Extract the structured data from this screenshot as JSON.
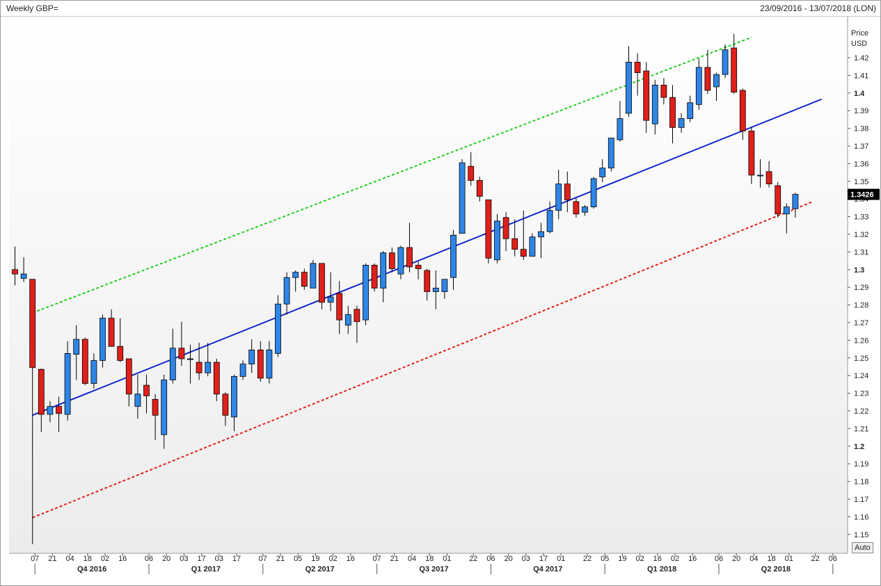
{
  "header": {
    "title": "Weekly GBP=",
    "date_range": "23/09/2016 - 13/07/2018 (LON)"
  },
  "axis": {
    "price_label": "Price",
    "currency_label": "USD",
    "auto_button": "Auto"
  },
  "colors": {
    "up": "#2e86e6",
    "down": "#e0201a",
    "trend": "#1428c8",
    "upper_channel": "#22cc22",
    "lower_channel": "#e0201a",
    "last_price_bg": "#000000"
  },
  "chart_data": {
    "type": "candlestick",
    "title": "Weekly GBP=",
    "ylabel": "Price USD",
    "ylim": [
      1.14,
      1.43
    ],
    "last_price": "1.3426",
    "yticks": [
      {
        "v": 1.15,
        "label": "1.15",
        "bold": false
      },
      {
        "v": 1.16,
        "label": "1.16",
        "bold": false
      },
      {
        "v": 1.17,
        "label": "1.17",
        "bold": false
      },
      {
        "v": 1.18,
        "label": "1.18",
        "bold": false
      },
      {
        "v": 1.19,
        "label": "1.19",
        "bold": false
      },
      {
        "v": 1.2,
        "label": "1.2",
        "bold": true
      },
      {
        "v": 1.21,
        "label": "1.21",
        "bold": false
      },
      {
        "v": 1.22,
        "label": "1.22",
        "bold": false
      },
      {
        "v": 1.23,
        "label": "1.23",
        "bold": false
      },
      {
        "v": 1.24,
        "label": "1.24",
        "bold": false
      },
      {
        "v": 1.25,
        "label": "1.25",
        "bold": false
      },
      {
        "v": 1.26,
        "label": "1.26",
        "bold": false
      },
      {
        "v": 1.27,
        "label": "1.27",
        "bold": false
      },
      {
        "v": 1.28,
        "label": "1.28",
        "bold": false
      },
      {
        "v": 1.29,
        "label": "1.29",
        "bold": false
      },
      {
        "v": 1.3,
        "label": "1.3",
        "bold": true
      },
      {
        "v": 1.31,
        "label": "1.31",
        "bold": false
      },
      {
        "v": 1.32,
        "label": "1.32",
        "bold": false
      },
      {
        "v": 1.33,
        "label": "1.33",
        "bold": false
      },
      {
        "v": 1.34,
        "label": "1.34",
        "bold": false
      },
      {
        "v": 1.35,
        "label": "1.35",
        "bold": false
      },
      {
        "v": 1.36,
        "label": "1.36",
        "bold": false
      },
      {
        "v": 1.37,
        "label": "1.37",
        "bold": false
      },
      {
        "v": 1.38,
        "label": "1.38",
        "bold": false
      },
      {
        "v": 1.39,
        "label": "1.39",
        "bold": false
      },
      {
        "v": 1.4,
        "label": "1.4",
        "bold": true
      },
      {
        "v": 1.41,
        "label": "1.41",
        "bold": false
      },
      {
        "v": 1.42,
        "label": "1.42",
        "bold": false
      }
    ],
    "xticks": [
      {
        "i": 2,
        "label": "07"
      },
      {
        "i": 4,
        "label": "21"
      },
      {
        "i": 6,
        "label": "04"
      },
      {
        "i": 8,
        "label": "18"
      },
      {
        "i": 10,
        "label": "02"
      },
      {
        "i": 12,
        "label": "16"
      },
      {
        "i": 15,
        "label": "06"
      },
      {
        "i": 17,
        "label": "20"
      },
      {
        "i": 19,
        "label": "03"
      },
      {
        "i": 21,
        "label": "17"
      },
      {
        "i": 23,
        "label": "03"
      },
      {
        "i": 25,
        "label": "17"
      },
      {
        "i": 28,
        "label": "07"
      },
      {
        "i": 30,
        "label": "21"
      },
      {
        "i": 32,
        "label": "05"
      },
      {
        "i": 34,
        "label": "19"
      },
      {
        "i": 36,
        "label": "02"
      },
      {
        "i": 38,
        "label": "16"
      },
      {
        "i": 41,
        "label": "07"
      },
      {
        "i": 43,
        "label": "21"
      },
      {
        "i": 45,
        "label": "04"
      },
      {
        "i": 47,
        "label": "18"
      },
      {
        "i": 49,
        "label": "01"
      },
      {
        "i": 52,
        "label": "22"
      },
      {
        "i": 54,
        "label": "06"
      },
      {
        "i": 56,
        "label": "20"
      },
      {
        "i": 58,
        "label": "03"
      },
      {
        "i": 60,
        "label": "17"
      },
      {
        "i": 62,
        "label": "01"
      },
      {
        "i": 65,
        "label": "22"
      },
      {
        "i": 67,
        "label": "05"
      },
      {
        "i": 69,
        "label": "19"
      },
      {
        "i": 71,
        "label": "02"
      },
      {
        "i": 73,
        "label": "16"
      },
      {
        "i": 75,
        "label": "02"
      },
      {
        "i": 77,
        "label": "16"
      },
      {
        "i": 80,
        "label": "06"
      },
      {
        "i": 82,
        "label": "20"
      },
      {
        "i": 84,
        "label": "04"
      },
      {
        "i": 86,
        "label": "18"
      },
      {
        "i": 88,
        "label": "01"
      },
      {
        "i": 91,
        "label": "22"
      },
      {
        "i": 93,
        "label": "06"
      }
    ],
    "quarters": [
      {
        "label": "Q4 2016",
        "start": 2,
        "end": 15
      },
      {
        "label": "Q1 2017",
        "start": 15,
        "end": 28
      },
      {
        "label": "Q2 2017",
        "start": 28,
        "end": 41
      },
      {
        "label": "Q3 2017",
        "start": 41,
        "end": 54
      },
      {
        "label": "Q4 2017",
        "start": 54,
        "end": 67
      },
      {
        "label": "Q1 2018",
        "start": 67,
        "end": 80
      },
      {
        "label": "Q2 2018",
        "start": 80,
        "end": 93
      }
    ],
    "candles": [
      {
        "o": 1.3,
        "h": 1.313,
        "l": 1.291,
        "c": 1.2975
      },
      {
        "o": 1.295,
        "h": 1.307,
        "l": 1.293,
        "c": 1.2975
      },
      {
        "o": 1.2945,
        "h": 1.2945,
        "l": 1.1445,
        "c": 1.2445
      },
      {
        "o": 1.2435,
        "h": 1.244,
        "l": 1.208,
        "c": 1.218
      },
      {
        "o": 1.218,
        "h": 1.2255,
        "l": 1.2135,
        "c": 1.2225
      },
      {
        "o": 1.2225,
        "h": 1.228,
        "l": 1.208,
        "c": 1.2185
      },
      {
        "o": 1.218,
        "h": 1.2595,
        "l": 1.2145,
        "c": 1.2525
      },
      {
        "o": 1.252,
        "h": 1.2685,
        "l": 1.2375,
        "c": 1.2605
      },
      {
        "o": 1.2605,
        "h": 1.2615,
        "l": 1.2345,
        "c": 1.2355
      },
      {
        "o": 1.2355,
        "h": 1.2525,
        "l": 1.2325,
        "c": 1.2485
      },
      {
        "o": 1.2485,
        "h": 1.2745,
        "l": 1.2445,
        "c": 1.2725
      },
      {
        "o": 1.2725,
        "h": 1.2775,
        "l": 1.2565,
        "c": 1.2565
      },
      {
        "o": 1.2565,
        "h": 1.2725,
        "l": 1.2475,
        "c": 1.2485
      },
      {
        "o": 1.2495,
        "h": 1.2495,
        "l": 1.2225,
        "c": 1.2295
      },
      {
        "o": 1.2225,
        "h": 1.2405,
        "l": 1.2155,
        "c": 1.2295
      },
      {
        "o": 1.2345,
        "h": 1.2405,
        "l": 1.2185,
        "c": 1.2285
      },
      {
        "o": 1.2265,
        "h": 1.2295,
        "l": 1.2035,
        "c": 1.2175
      },
      {
        "o": 1.2065,
        "h": 1.2405,
        "l": 1.1985,
        "c": 1.2375
      },
      {
        "o": 1.2375,
        "h": 1.2665,
        "l": 1.2355,
        "c": 1.2555
      },
      {
        "o": 1.2555,
        "h": 1.2705,
        "l": 1.2455,
        "c": 1.2495
      },
      {
        "o": 1.2495,
        "h": 1.2575,
        "l": 1.2355,
        "c": 1.2495
      },
      {
        "o": 1.2475,
        "h": 1.2585,
        "l": 1.2375,
        "c": 1.2415
      },
      {
        "o": 1.2415,
        "h": 1.2585,
        "l": 1.2395,
        "c": 1.2475
      },
      {
        "o": 1.2475,
        "h": 1.2495,
        "l": 1.2255,
        "c": 1.2295
      },
      {
        "o": 1.2295,
        "h": 1.2305,
        "l": 1.2115,
        "c": 1.2175
      },
      {
        "o": 1.2165,
        "h": 1.2405,
        "l": 1.2085,
        "c": 1.2395
      },
      {
        "o": 1.2395,
        "h": 1.2485,
        "l": 1.2375,
        "c": 1.2465
      },
      {
        "o": 1.2465,
        "h": 1.2605,
        "l": 1.2415,
        "c": 1.2545
      },
      {
        "o": 1.2545,
        "h": 1.2595,
        "l": 1.2365,
        "c": 1.2385
      },
      {
        "o": 1.2385,
        "h": 1.2595,
        "l": 1.2355,
        "c": 1.2545
      },
      {
        "o": 1.2525,
        "h": 1.2855,
        "l": 1.2505,
        "c": 1.2805
      },
      {
        "o": 1.2805,
        "h": 1.2985,
        "l": 1.2745,
        "c": 1.2955
      },
      {
        "o": 1.2955,
        "h": 1.2995,
        "l": 1.2875,
        "c": 1.2985
      },
      {
        "o": 1.2985,
        "h": 1.3005,
        "l": 1.2885,
        "c": 1.2905
      },
      {
        "o": 1.2895,
        "h": 1.3055,
        "l": 1.2895,
        "c": 1.3035
      },
      {
        "o": 1.3035,
        "h": 1.3035,
        "l": 1.2775,
        "c": 1.2815
      },
      {
        "o": 1.2815,
        "h": 1.2985,
        "l": 1.2765,
        "c": 1.2845
      },
      {
        "o": 1.2865,
        "h": 1.2935,
        "l": 1.2635,
        "c": 1.2715
      },
      {
        "o": 1.2685,
        "h": 1.2795,
        "l": 1.2635,
        "c": 1.2745
      },
      {
        "o": 1.2775,
        "h": 1.2795,
        "l": 1.2585,
        "c": 1.2705
      },
      {
        "o": 1.2715,
        "h": 1.3035,
        "l": 1.2685,
        "c": 1.3025
      },
      {
        "o": 1.3025,
        "h": 1.3035,
        "l": 1.2875,
        "c": 1.2895
      },
      {
        "o": 1.2895,
        "h": 1.3105,
        "l": 1.2815,
        "c": 1.3095
      },
      {
        "o": 1.3095,
        "h": 1.3125,
        "l": 1.2985,
        "c": 1.3005
      },
      {
        "o": 1.2975,
        "h": 1.3135,
        "l": 1.2945,
        "c": 1.3125
      },
      {
        "o": 1.3125,
        "h": 1.3265,
        "l": 1.2985,
        "c": 1.3015
      },
      {
        "o": 1.3025,
        "h": 1.3045,
        "l": 1.2945,
        "c": 1.3005
      },
      {
        "o": 1.2995,
        "h": 1.3005,
        "l": 1.2825,
        "c": 1.2875
      },
      {
        "o": 1.2875,
        "h": 1.2995,
        "l": 1.2775,
        "c": 1.2895
      },
      {
        "o": 1.2875,
        "h": 1.2945,
        "l": 1.2835,
        "c": 1.2945
      },
      {
        "o": 1.2955,
        "h": 1.3225,
        "l": 1.2885,
        "c": 1.3195
      },
      {
        "o": 1.3205,
        "h": 1.3625,
        "l": 1.3205,
        "c": 1.3605
      },
      {
        "o": 1.3585,
        "h": 1.3665,
        "l": 1.3475,
        "c": 1.3505
      },
      {
        "o": 1.3505,
        "h": 1.3525,
        "l": 1.3385,
        "c": 1.3415
      },
      {
        "o": 1.3395,
        "h": 1.3395,
        "l": 1.3035,
        "c": 1.3065
      },
      {
        "o": 1.3055,
        "h": 1.3315,
        "l": 1.3035,
        "c": 1.3275
      },
      {
        "o": 1.3295,
        "h": 1.3325,
        "l": 1.3105,
        "c": 1.3175
      },
      {
        "o": 1.3175,
        "h": 1.3285,
        "l": 1.3075,
        "c": 1.3115
      },
      {
        "o": 1.3115,
        "h": 1.3335,
        "l": 1.3055,
        "c": 1.3075
      },
      {
        "o": 1.3075,
        "h": 1.3205,
        "l": 1.3075,
        "c": 1.3185
      },
      {
        "o": 1.3185,
        "h": 1.3265,
        "l": 1.3065,
        "c": 1.3215
      },
      {
        "o": 1.3215,
        "h": 1.3385,
        "l": 1.3205,
        "c": 1.3335
      },
      {
        "o": 1.3335,
        "h": 1.3565,
        "l": 1.3285,
        "c": 1.3485
      },
      {
        "o": 1.3485,
        "h": 1.3555,
        "l": 1.3325,
        "c": 1.3395
      },
      {
        "o": 1.3385,
        "h": 1.3405,
        "l": 1.3295,
        "c": 1.3315
      },
      {
        "o": 1.3325,
        "h": 1.3365,
        "l": 1.3305,
        "c": 1.3355
      },
      {
        "o": 1.3355,
        "h": 1.3525,
        "l": 1.3345,
        "c": 1.3515
      },
      {
        "o": 1.3525,
        "h": 1.3625,
        "l": 1.3495,
        "c": 1.3575
      },
      {
        "o": 1.3575,
        "h": 1.3745,
        "l": 1.3555,
        "c": 1.3745
      },
      {
        "o": 1.3735,
        "h": 1.3955,
        "l": 1.3725,
        "c": 1.3855
      },
      {
        "o": 1.3885,
        "h": 1.4265,
        "l": 1.3865,
        "c": 1.4175
      },
      {
        "o": 1.4175,
        "h": 1.4225,
        "l": 1.3985,
        "c": 1.4115
      },
      {
        "o": 1.4125,
        "h": 1.4175,
        "l": 1.3775,
        "c": 1.3845
      },
      {
        "o": 1.3825,
        "h": 1.4075,
        "l": 1.3765,
        "c": 1.4045
      },
      {
        "o": 1.4045,
        "h": 1.4085,
        "l": 1.3935,
        "c": 1.3975
      },
      {
        "o": 1.3975,
        "h": 1.4045,
        "l": 1.3715,
        "c": 1.3805
      },
      {
        "o": 1.3805,
        "h": 1.3885,
        "l": 1.3775,
        "c": 1.3855
      },
      {
        "o": 1.3855,
        "h": 1.3985,
        "l": 1.3835,
        "c": 1.3945
      },
      {
        "o": 1.3935,
        "h": 1.4195,
        "l": 1.3905,
        "c": 1.4145
      },
      {
        "o": 1.4145,
        "h": 1.4245,
        "l": 1.3995,
        "c": 1.4015
      },
      {
        "o": 1.4035,
        "h": 1.4115,
        "l": 1.3955,
        "c": 1.4105
      },
      {
        "o": 1.4105,
        "h": 1.4275,
        "l": 1.4085,
        "c": 1.4245
      },
      {
        "o": 1.4255,
        "h": 1.4335,
        "l": 1.3995,
        "c": 1.4005
      },
      {
        "o": 1.4015,
        "h": 1.4025,
        "l": 1.3735,
        "c": 1.3785
      },
      {
        "o": 1.3785,
        "h": 1.3805,
        "l": 1.3485,
        "c": 1.3535
      },
      {
        "o": 1.3535,
        "h": 1.3625,
        "l": 1.3465,
        "c": 1.3535
      },
      {
        "o": 1.3555,
        "h": 1.3615,
        "l": 1.3465,
        "c": 1.3485
      },
      {
        "o": 1.3475,
        "h": 1.3495,
        "l": 1.3295,
        "c": 1.3315
      },
      {
        "o": 1.3315,
        "h": 1.3375,
        "l": 1.3205,
        "c": 1.3355
      },
      {
        "o": 1.3345,
        "h": 1.3435,
        "l": 1.3295,
        "c": 1.3426
      }
    ],
    "lines": [
      {
        "name": "trend",
        "i0": 2,
        "v0": 1.2175,
        "i1": 92,
        "v1": 1.3965,
        "style": "solid",
        "color": "#1428c8"
      },
      {
        "name": "upper",
        "i0": 2,
        "v0": 1.2755,
        "i1": 84,
        "v1": 1.4315,
        "style": "dashed",
        "color": "#22cc22"
      },
      {
        "name": "lower",
        "i0": 2,
        "v0": 1.1595,
        "i1": 91,
        "v1": 1.3385,
        "style": "dashed",
        "color": "#e0201a"
      }
    ]
  }
}
